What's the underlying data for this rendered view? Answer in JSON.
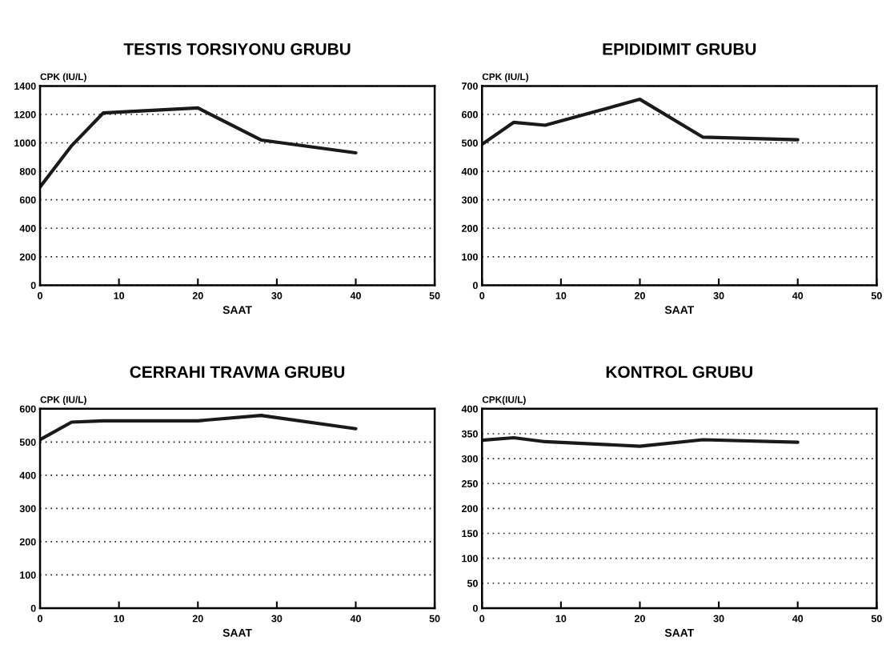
{
  "chart_data": [
    {
      "type": "line",
      "title": "TESTIS TORSIYONU GRUBU",
      "xlabel": "SAAT",
      "ylabel": "CPK (IU/L)",
      "x": [
        0,
        4,
        8,
        20,
        28,
        40
      ],
      "xlim": [
        0,
        50
      ],
      "xticks": [
        0,
        10,
        20,
        30,
        40,
        50
      ],
      "ylim": [
        0,
        1400
      ],
      "yticks": [
        0,
        200,
        400,
        600,
        800,
        1000,
        1200,
        1400
      ],
      "grid": "y",
      "series": [
        {
          "color": "#1a1a1a",
          "values": [
            690,
            980,
            1210,
            1245,
            1020,
            930
          ]
        }
      ]
    },
    {
      "type": "line",
      "title": "EPIDIDIMIT GRUBU",
      "xlabel": "SAAT",
      "ylabel": "CPK (IU/L)",
      "x": [
        0,
        4,
        8,
        20,
        28,
        40
      ],
      "xlim": [
        0,
        50
      ],
      "xticks": [
        0,
        10,
        20,
        30,
        40,
        50
      ],
      "ylim": [
        0,
        700
      ],
      "yticks": [
        0,
        100,
        200,
        300,
        400,
        500,
        600,
        700
      ],
      "grid": "y",
      "series": [
        {
          "color": "#1a1a1a",
          "values": [
            495,
            572,
            562,
            653,
            520,
            511
          ]
        }
      ]
    },
    {
      "type": "line",
      "title": "CERRAHI TRAVMA GRUBU",
      "xlabel": "SAAT",
      "ylabel": "CPK (IU/L)",
      "x": [
        0,
        4,
        8,
        20,
        28,
        40
      ],
      "xlim": [
        0,
        50
      ],
      "xticks": [
        0,
        10,
        20,
        30,
        40,
        50
      ],
      "ylim": [
        0,
        600
      ],
      "yticks": [
        0,
        100,
        200,
        300,
        400,
        500,
        600
      ],
      "grid": "y",
      "series": [
        {
          "color": "#1a1a1a",
          "values": [
            507,
            560,
            564,
            564,
            580,
            540
          ]
        }
      ]
    },
    {
      "type": "line",
      "title": "KONTROL GRUBU",
      "xlabel": "SAAT",
      "ylabel": "CPK(IU/L)",
      "x": [
        0,
        4,
        8,
        20,
        28,
        40
      ],
      "xlim": [
        0,
        50
      ],
      "xticks": [
        0,
        10,
        20,
        30,
        40,
        50
      ],
      "ylim": [
        0,
        400
      ],
      "yticks": [
        0,
        50,
        100,
        150,
        200,
        250,
        300,
        350,
        400
      ],
      "grid": "y",
      "series": [
        {
          "color": "#1a1a1a",
          "values": [
            337,
            342,
            334,
            325,
            338,
            333
          ]
        }
      ]
    }
  ]
}
